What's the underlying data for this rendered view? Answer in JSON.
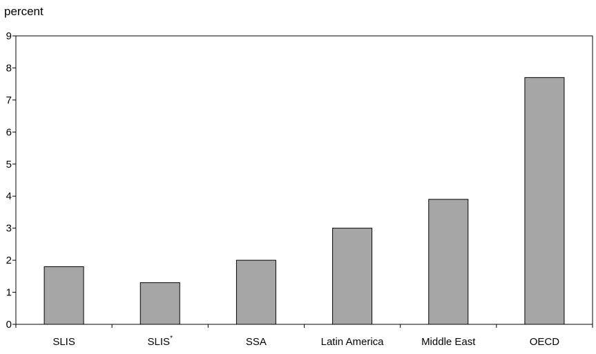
{
  "chart_data": {
    "type": "bar",
    "ylabel": "percent",
    "xlabel": "",
    "title": "",
    "categories": [
      "SLIS",
      "SLIS*",
      "SSA",
      "Latin America",
      "Middle East",
      "OECD"
    ],
    "category_labels": [
      {
        "text": "SLIS",
        "sup": ""
      },
      {
        "text": "SLIS",
        "sup": "*"
      },
      {
        "text": "SSA",
        "sup": ""
      },
      {
        "text": "Latin America",
        "sup": ""
      },
      {
        "text": "Middle East",
        "sup": ""
      },
      {
        "text": "OECD",
        "sup": ""
      }
    ],
    "values": [
      1.8,
      1.3,
      2.0,
      3.0,
      3.9,
      7.7
    ],
    "ylim": [
      0,
      9
    ],
    "yticks": [
      "0",
      "1",
      "2",
      "3",
      "4",
      "5",
      "6",
      "7",
      "8",
      "9"
    ],
    "grid": false,
    "legend": "none",
    "bar_color": "#a6a6a6",
    "bar_stroke": "#000000"
  }
}
